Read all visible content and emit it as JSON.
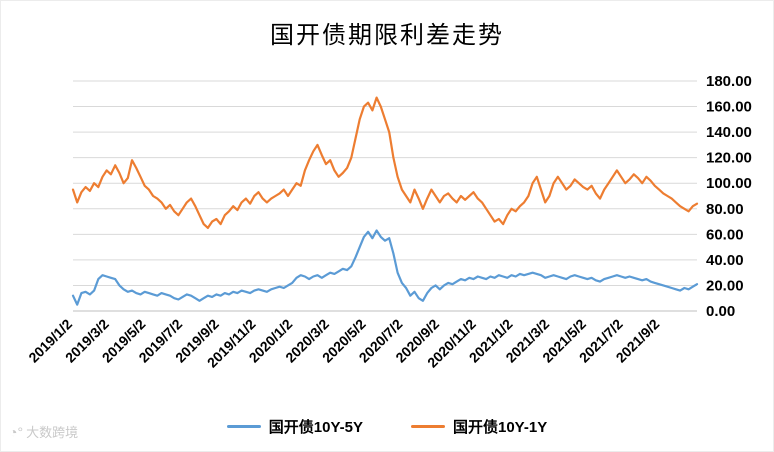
{
  "chart_data": {
    "type": "line",
    "title": "国开债期限利差走势",
    "xlabel": "",
    "ylabel": "",
    "ylim": [
      0,
      180
    ],
    "ytick_step": 20,
    "y_axis_side": "right",
    "grid": true,
    "legend_position": "bottom",
    "x_tick_count": 17,
    "x_tick_labels": [
      "2019/1/2",
      "2019/3/2",
      "2019/5/2",
      "2019/7/2",
      "2019/9/2",
      "2019/11/2",
      "2020/1/2",
      "2020/3/2",
      "2020/5/2",
      "2020/7/2",
      "2020/9/2",
      "2020/11/2",
      "2021/1/2",
      "2021/3/2",
      "2021/5/2",
      "2021/7/2",
      "2021/9/2"
    ],
    "series": [
      {
        "name": "国开债10Y-5Y",
        "color": "#5B9BD5",
        "values": [
          12,
          5,
          14,
          15,
          13,
          16,
          25,
          28,
          27,
          26,
          25,
          20,
          17,
          15,
          16,
          14,
          13,
          15,
          14,
          13,
          12,
          14,
          13,
          12,
          10,
          9,
          11,
          13,
          12,
          10,
          8,
          10,
          12,
          11,
          13,
          12,
          14,
          13,
          15,
          14,
          16,
          15,
          14,
          16,
          17,
          16,
          15,
          17,
          18,
          19,
          18,
          20,
          22,
          26,
          28,
          27,
          25,
          27,
          28,
          26,
          28,
          30,
          29,
          31,
          33,
          32,
          35,
          42,
          50,
          58,
          62,
          57,
          63,
          58,
          55,
          57,
          45,
          30,
          22,
          18,
          12,
          15,
          10,
          8,
          14,
          18,
          20,
          17,
          20,
          22,
          21,
          23,
          25,
          24,
          26,
          25,
          27,
          26,
          25,
          27,
          26,
          28,
          27,
          26,
          28,
          27,
          29,
          28,
          29,
          30,
          29,
          28,
          26,
          27,
          28,
          27,
          26,
          25,
          27,
          28,
          27,
          26,
          25,
          26,
          24,
          23,
          25,
          26,
          27,
          28,
          27,
          26,
          27,
          26,
          25,
          24,
          25,
          23,
          22,
          21,
          20,
          19,
          18,
          17,
          16,
          18,
          17,
          19,
          21
        ]
      },
      {
        "name": "国开债10Y-1Y",
        "color": "#ED7D31",
        "values": [
          95,
          85,
          93,
          97,
          94,
          100,
          97,
          105,
          110,
          107,
          114,
          108,
          100,
          104,
          118,
          112,
          105,
          98,
          95,
          90,
          88,
          85,
          80,
          83,
          78,
          75,
          80,
          85,
          88,
          82,
          75,
          68,
          65,
          70,
          72,
          68,
          75,
          78,
          82,
          79,
          85,
          88,
          84,
          90,
          93,
          88,
          85,
          88,
          90,
          92,
          95,
          90,
          95,
          100,
          98,
          110,
          118,
          125,
          130,
          122,
          115,
          118,
          110,
          105,
          108,
          112,
          120,
          135,
          150,
          160,
          163,
          157,
          167,
          160,
          150,
          140,
          120,
          105,
          95,
          90,
          85,
          95,
          88,
          80,
          88,
          95,
          90,
          85,
          90,
          92,
          88,
          85,
          90,
          87,
          90,
          93,
          88,
          85,
          80,
          75,
          70,
          72,
          68,
          75,
          80,
          78,
          82,
          85,
          90,
          100,
          105,
          95,
          85,
          90,
          100,
          105,
          100,
          95,
          98,
          103,
          100,
          97,
          95,
          98,
          92,
          88,
          95,
          100,
          105,
          110,
          105,
          100,
          103,
          107,
          104,
          100,
          105,
          102,
          98,
          95,
          92,
          90,
          88,
          85,
          82,
          80,
          78,
          82,
          84
        ]
      }
    ]
  },
  "watermark": {
    "icon": "◔°",
    "text": "大数跨境"
  }
}
